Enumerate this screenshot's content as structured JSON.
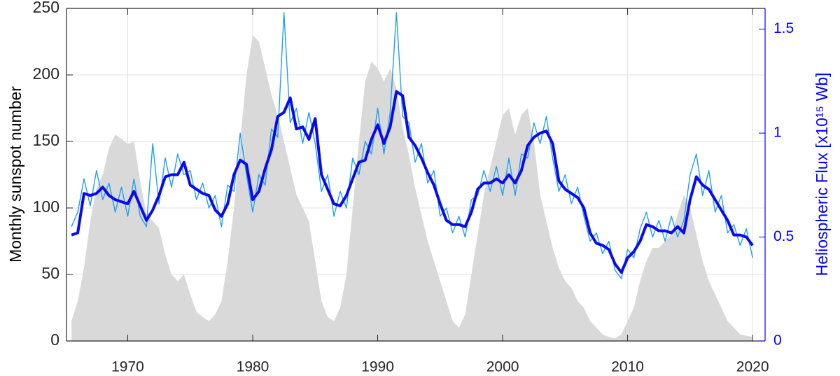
{
  "chart_data": {
    "type": "combo",
    "ylabel": "Monthly sunspot number",
    "y2label": "Heliospheric Flux [x10¹⁵ Wb]",
    "xlim": [
      1965.1,
      2021
    ],
    "xticks": [
      1970,
      1980,
      1990,
      2000,
      2010,
      2020
    ],
    "ylim": [
      0,
      250
    ],
    "yticks": [
      0,
      50,
      100,
      150,
      200,
      250
    ],
    "y2lim": [
      0,
      1.6
    ],
    "y2ticks": [
      0,
      0.5,
      1,
      1.5
    ],
    "y2color": "#0000ff",
    "grid": true,
    "x": [
      1965.5,
      1966,
      1966.5,
      1967,
      1967.5,
      1968,
      1968.5,
      1969,
      1969.5,
      1970,
      1970.5,
      1971,
      1971.5,
      1972,
      1972.5,
      1973,
      1973.5,
      1974,
      1974.5,
      1975,
      1975.5,
      1976,
      1976.5,
      1977,
      1977.5,
      1978,
      1978.5,
      1979,
      1979.5,
      1980,
      1980.5,
      1981,
      1981.5,
      1982,
      1982.5,
      1983,
      1983.5,
      1984,
      1984.5,
      1985,
      1985.5,
      1986,
      1986.5,
      1987,
      1987.5,
      1988,
      1988.5,
      1989,
      1989.5,
      1990,
      1990.5,
      1991,
      1991.5,
      1992,
      1992.5,
      1993,
      1993.5,
      1994,
      1994.5,
      1995,
      1995.5,
      1996,
      1996.5,
      1997,
      1997.5,
      1998,
      1998.5,
      1999,
      1999.5,
      2000,
      2000.5,
      2001,
      2001.5,
      2002,
      2002.5,
      2003,
      2003.5,
      2004,
      2004.5,
      2005,
      2005.5,
      2006,
      2006.5,
      2007,
      2007.5,
      2008,
      2008.5,
      2009,
      2009.5,
      2010,
      2010.5,
      2011,
      2011.5,
      2012,
      2012.5,
      2013,
      2013.5,
      2014,
      2014.5,
      2015,
      2015.5,
      2016,
      2016.5,
      2017,
      2017.5,
      2018,
      2018.5,
      2019,
      2019.5,
      2020
    ],
    "series": [
      {
        "type": "area",
        "color": "#d9d9d9",
        "values": [
          15,
          30,
          55,
          90,
          115,
          125,
          145,
          155,
          152,
          148,
          150,
          120,
          95,
          90,
          85,
          65,
          50,
          45,
          50,
          35,
          22,
          18,
          15,
          20,
          30,
          60,
          100,
          150,
          200,
          230,
          225,
          205,
          185,
          170,
          150,
          130,
          110,
          100,
          90,
          60,
          30,
          18,
          15,
          25,
          50,
          100,
          150,
          195,
          210,
          205,
          195,
          205,
          190,
          160,
          140,
          115,
          95,
          75,
          60,
          45,
          30,
          15,
          10,
          20,
          50,
          80,
          110,
          130,
          150,
          170,
          175,
          155,
          170,
          175,
          150,
          110,
          90,
          70,
          55,
          45,
          40,
          30,
          25,
          15,
          10,
          5,
          3,
          2,
          5,
          15,
          25,
          45,
          60,
          70,
          70,
          75,
          80,
          95,
          110,
          100,
          80,
          60,
          45,
          35,
          25,
          15,
          10,
          5,
          4,
          3
        ]
      },
      {
        "type": "line",
        "axis": "y2",
        "color": "#1ea0f0",
        "line_width": 1.4,
        "values": [
          0.55,
          0.62,
          0.78,
          0.65,
          0.82,
          0.68,
          0.76,
          0.62,
          0.74,
          0.6,
          0.78,
          0.6,
          0.55,
          0.95,
          0.66,
          0.88,
          0.74,
          0.9,
          0.8,
          0.82,
          0.68,
          0.76,
          0.64,
          0.7,
          0.55,
          0.75,
          0.72,
          1.0,
          0.8,
          0.62,
          0.8,
          0.75,
          1.02,
          0.98,
          1.58,
          1.05,
          1.12,
          0.95,
          1.1,
          0.95,
          0.72,
          0.8,
          0.6,
          0.72,
          0.64,
          0.88,
          0.8,
          0.96,
          0.9,
          1.12,
          0.9,
          1.1,
          1.58,
          1.08,
          1.05,
          0.86,
          0.95,
          0.76,
          0.82,
          0.6,
          0.64,
          0.52,
          0.6,
          0.5,
          0.68,
          0.7,
          0.82,
          0.72,
          0.84,
          0.7,
          0.88,
          0.7,
          0.9,
          0.88,
          1.05,
          0.95,
          1.08,
          0.88,
          0.72,
          0.8,
          0.66,
          0.74,
          0.6,
          0.48,
          0.52,
          0.42,
          0.48,
          0.34,
          0.3,
          0.44,
          0.4,
          0.54,
          0.62,
          0.5,
          0.58,
          0.48,
          0.6,
          0.5,
          0.58,
          0.8,
          0.9,
          0.7,
          0.82,
          0.62,
          0.7,
          0.52,
          0.56,
          0.46,
          0.54,
          0.4
        ]
      },
      {
        "type": "line",
        "axis": "y2",
        "color": "#0a0aee",
        "line_width": 4,
        "values": [
          0.51,
          0.52,
          0.71,
          0.7,
          0.71,
          0.74,
          0.7,
          0.68,
          0.67,
          0.66,
          0.72,
          0.65,
          0.58,
          0.63,
          0.7,
          0.79,
          0.8,
          0.8,
          0.86,
          0.75,
          0.73,
          0.71,
          0.7,
          0.63,
          0.6,
          0.66,
          0.8,
          0.87,
          0.85,
          0.68,
          0.72,
          0.83,
          0.92,
          1.08,
          1.1,
          1.17,
          1.02,
          1.03,
          0.97,
          1.07,
          0.8,
          0.73,
          0.66,
          0.65,
          0.7,
          0.78,
          0.86,
          0.87,
          0.97,
          1.04,
          0.95,
          1.03,
          1.2,
          1.18,
          0.98,
          0.94,
          0.88,
          0.81,
          0.75,
          0.66,
          0.58,
          0.56,
          0.56,
          0.55,
          0.62,
          0.73,
          0.76,
          0.76,
          0.78,
          0.76,
          0.8,
          0.76,
          0.82,
          0.94,
          0.98,
          1.0,
          1.01,
          0.95,
          0.77,
          0.73,
          0.71,
          0.69,
          0.64,
          0.52,
          0.47,
          0.46,
          0.44,
          0.37,
          0.33,
          0.4,
          0.43,
          0.48,
          0.56,
          0.55,
          0.53,
          0.53,
          0.52,
          0.55,
          0.52,
          0.68,
          0.79,
          0.75,
          0.73,
          0.68,
          0.63,
          0.58,
          0.51,
          0.51,
          0.5,
          0.46
        ]
      }
    ]
  }
}
